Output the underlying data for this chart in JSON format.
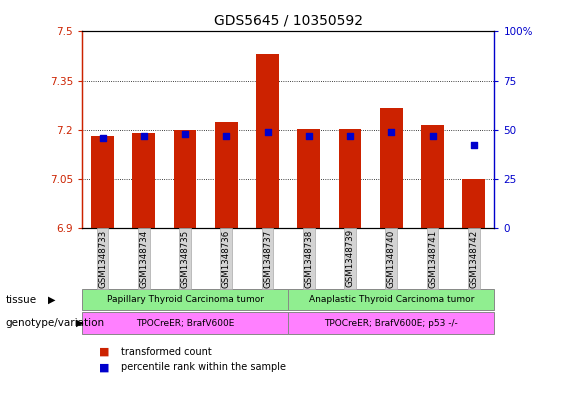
{
  "title": "GDS5645 / 10350592",
  "samples": [
    "GSM1348733",
    "GSM1348734",
    "GSM1348735",
    "GSM1348736",
    "GSM1348737",
    "GSM1348738",
    "GSM1348739",
    "GSM1348740",
    "GSM1348741",
    "GSM1348742"
  ],
  "bar_values": [
    7.18,
    7.19,
    7.2,
    7.225,
    7.43,
    7.202,
    7.201,
    7.265,
    7.215,
    7.05
  ],
  "percentile_values": [
    46,
    47,
    48,
    47,
    49,
    47,
    47,
    49,
    47,
    42
  ],
  "ylim_left": [
    6.9,
    7.5
  ],
  "ylim_right": [
    0,
    100
  ],
  "yticks_left": [
    6.9,
    7.05,
    7.2,
    7.35,
    7.5
  ],
  "yticks_right": [
    0,
    25,
    50,
    75,
    100
  ],
  "bar_color": "#cc2200",
  "percentile_color": "#0000cc",
  "tick_label_left_color": "#cc2200",
  "tick_label_right_color": "#0000cc",
  "tissue_group1": "Papillary Thyroid Carcinoma tumor",
  "tissue_group2": "Anaplastic Thyroid Carcinoma tumor",
  "genotype_group1": "TPOCreER; BrafV600E",
  "genotype_group2": "TPOCreER; BrafV600E; p53 -/-",
  "tissue_color": "#90ee90",
  "genotype_color": "#ff80ff",
  "n_group1": 5,
  "n_group2": 5,
  "legend_red": "transformed count",
  "legend_blue": "percentile rank within the sample",
  "bar_width": 0.55,
  "title_fontsize": 10,
  "tick_fontsize": 7.5,
  "annotation_fontsize": 7,
  "label_fontsize": 7.5
}
